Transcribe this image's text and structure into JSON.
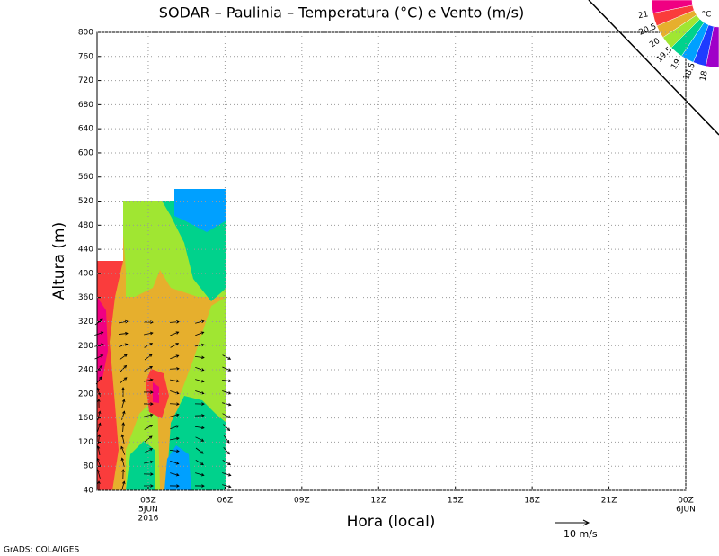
{
  "chart_data": {
    "type": "contour",
    "title": "SODAR – Paulinia – Temperatura (°C) e Vento (m/s)",
    "xlabel": "Hora (local)",
    "ylabel": "Altura (m)",
    "xlim": [
      1,
      24
    ],
    "ylim": [
      40,
      800
    ],
    "xticks": [
      {
        "value": 3,
        "label": "03Z"
      },
      {
        "value": 6,
        "label": "06Z"
      },
      {
        "value": 9,
        "label": "09Z"
      },
      {
        "value": 12,
        "label": "12Z"
      },
      {
        "value": 15,
        "label": "15Z"
      },
      {
        "value": 18,
        "label": "18Z"
      },
      {
        "value": 21,
        "label": "21Z"
      },
      {
        "value": 24,
        "label": "00Z"
      }
    ],
    "x_date_labels": [
      {
        "value": 3,
        "label": "5JUN"
      },
      {
        "value": 3,
        "label": "2016"
      },
      {
        "value": 24,
        "label": "6JUN"
      }
    ],
    "yticks": [
      40,
      80,
      120,
      160,
      200,
      240,
      280,
      320,
      360,
      400,
      440,
      480,
      520,
      560,
      600,
      640,
      680,
      720,
      760,
      800
    ],
    "grid": true,
    "colorbar": {
      "levels": [
        18,
        18.5,
        19,
        19.5,
        20,
        20.5,
        21
      ],
      "unit": "°C",
      "colors": [
        "#a000c8",
        "#1e3cff",
        "#00a0ff",
        "#00d28c",
        "#a0e632",
        "#e6af2d",
        "#fa3c3c",
        "#f00082"
      ]
    },
    "wind_scale_label": "10 m/s",
    "credit": "GrADS: COLA/IGES"
  }
}
